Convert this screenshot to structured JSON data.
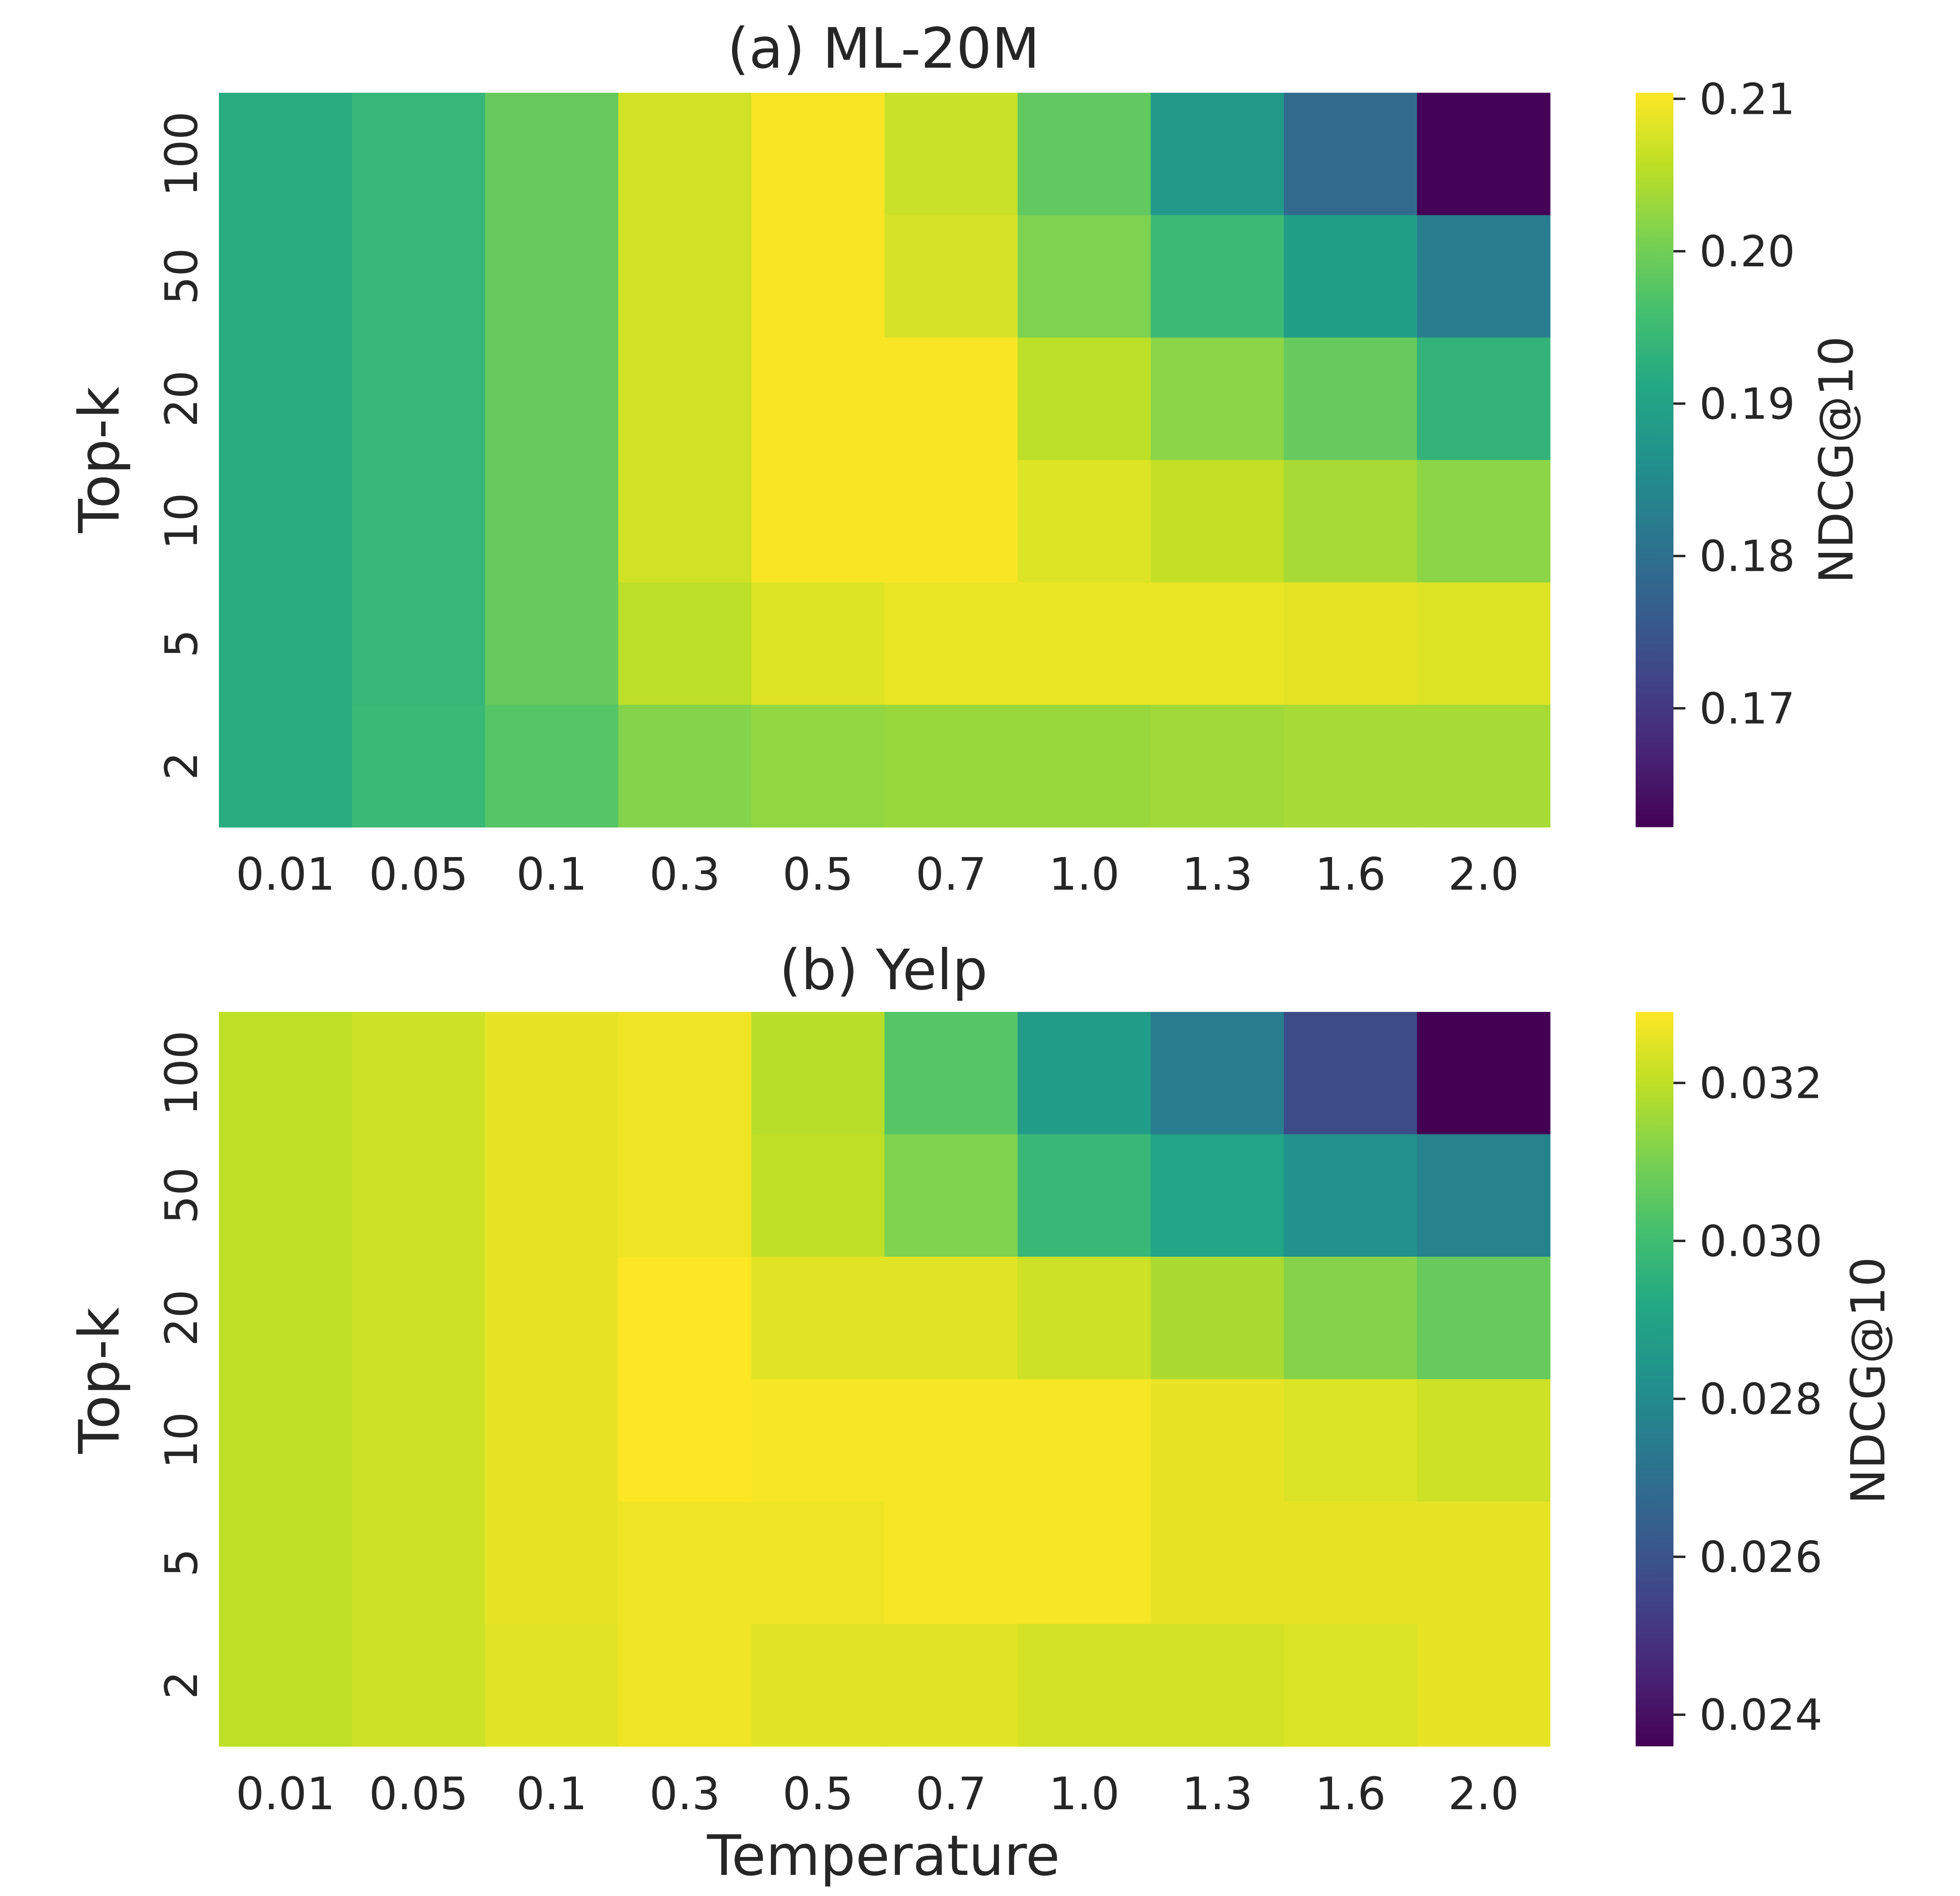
{
  "chart_data": [
    {
      "type": "heatmap",
      "title": "(a) ML-20M",
      "xlabel": "",
      "ylabel": "Top-k",
      "x_categories": [
        "0.01",
        "0.05",
        "0.1",
        "0.3",
        "0.5",
        "0.7",
        "1.0",
        "1.3",
        "1.6",
        "2.0"
      ],
      "y_categories": [
        "100",
        "50",
        "20",
        "10",
        "5",
        "2"
      ],
      "values": [
        [
          0.192,
          0.194,
          0.199,
          0.207,
          0.21,
          0.2065,
          0.1985,
          0.188,
          0.179,
          0.1625
        ],
        [
          0.192,
          0.194,
          0.199,
          0.207,
          0.21,
          0.2075,
          0.201,
          0.195,
          0.1895,
          0.1825
        ],
        [
          0.192,
          0.194,
          0.199,
          0.207,
          0.21,
          0.21,
          0.2055,
          0.202,
          0.199,
          0.1935
        ],
        [
          0.192,
          0.194,
          0.199,
          0.207,
          0.21,
          0.21,
          0.208,
          0.206,
          0.204,
          0.202
        ],
        [
          0.192,
          0.194,
          0.199,
          0.2055,
          0.208,
          0.209,
          0.209,
          0.209,
          0.2085,
          0.208
        ],
        [
          0.192,
          0.1945,
          0.1975,
          0.2015,
          0.2025,
          0.203,
          0.203,
          0.2035,
          0.204,
          0.204
        ]
      ],
      "colorbar": {
        "label": "NDCG@10",
        "vmin": 0.1622,
        "vmax": 0.2104,
        "ticks": [
          0.21,
          0.2,
          0.19,
          0.18,
          0.17
        ],
        "tick_labels": [
          "0.21",
          "0.20",
          "0.19",
          "0.18",
          "0.17"
        ]
      },
      "colormap": "viridis"
    },
    {
      "type": "heatmap",
      "title": "(b) Yelp",
      "xlabel": "Temperature",
      "ylabel": "Top-k",
      "x_categories": [
        "0.01",
        "0.05",
        "0.1",
        "0.3",
        "0.5",
        "0.7",
        "1.0",
        "1.3",
        "1.6",
        "2.0"
      ],
      "y_categories": [
        "100",
        "50",
        "20",
        "10",
        "5",
        "2"
      ],
      "values": [
        [
          0.032,
          0.0322,
          0.0326,
          0.0327,
          0.0319,
          0.0304,
          0.0287,
          0.0275,
          0.0257,
          0.0236
        ],
        [
          0.032,
          0.0322,
          0.0326,
          0.0327,
          0.032,
          0.0311,
          0.0298,
          0.029,
          0.0283,
          0.0277
        ],
        [
          0.032,
          0.0322,
          0.0326,
          0.0329,
          0.0325,
          0.0325,
          0.0322,
          0.0317,
          0.0312,
          0.0307
        ],
        [
          0.032,
          0.0322,
          0.0326,
          0.0329,
          0.0328,
          0.0328,
          0.0328,
          0.0326,
          0.0324,
          0.0322
        ],
        [
          0.032,
          0.0322,
          0.0326,
          0.0327,
          0.0327,
          0.0328,
          0.0328,
          0.0326,
          0.0326,
          0.0326
        ],
        [
          0.032,
          0.0322,
          0.0325,
          0.0327,
          0.0325,
          0.0325,
          0.0323,
          0.0323,
          0.0324,
          0.0326
        ]
      ],
      "colorbar": {
        "label": "NDCG@10",
        "vmin": 0.0236,
        "vmax": 0.0329,
        "ticks": [
          0.032,
          0.03,
          0.028,
          0.026,
          0.024
        ],
        "tick_labels": [
          "0.032",
          "0.030",
          "0.028",
          "0.026",
          "0.024"
        ]
      },
      "colormap": "viridis"
    }
  ]
}
